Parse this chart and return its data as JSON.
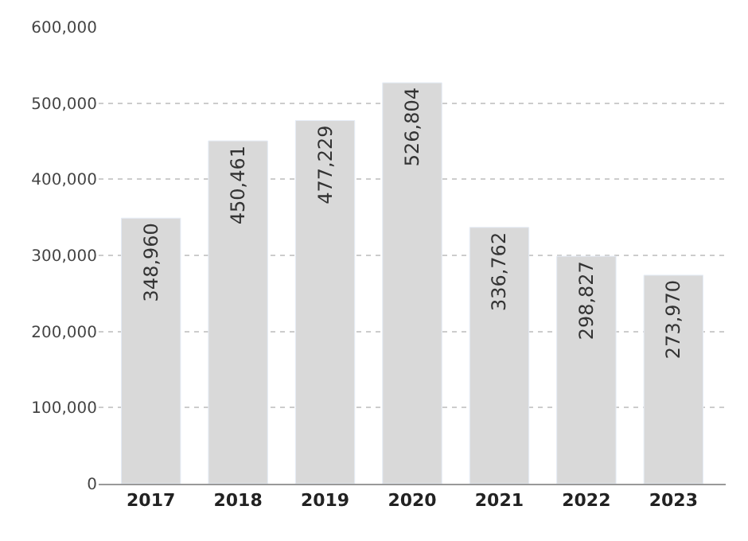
{
  "chart_data": {
    "type": "bar",
    "categories": [
      "2017",
      "2018",
      "2019",
      "2020",
      "2021",
      "2022",
      "2023"
    ],
    "values": [
      348960,
      450461,
      477229,
      526804,
      336762,
      298827,
      273970
    ],
    "value_labels": [
      "348,960",
      "450,461",
      "477,229",
      "526,804",
      "336,762",
      "298,827",
      "273,970"
    ],
    "color": "#d9d9d9",
    "ylim": [
      0,
      600000
    ],
    "yticks": [
      {
        "value": 0,
        "label": "0"
      },
      {
        "value": 100000,
        "label": "100,000"
      },
      {
        "value": 200000,
        "label": "200,000"
      },
      {
        "value": 300000,
        "label": "300,000"
      },
      {
        "value": 400000,
        "label": "400,000"
      },
      {
        "value": 500000,
        "label": "500,000"
      },
      {
        "value": 600000,
        "label": "600,000"
      }
    ],
    "grid": "y",
    "legend": false
  }
}
